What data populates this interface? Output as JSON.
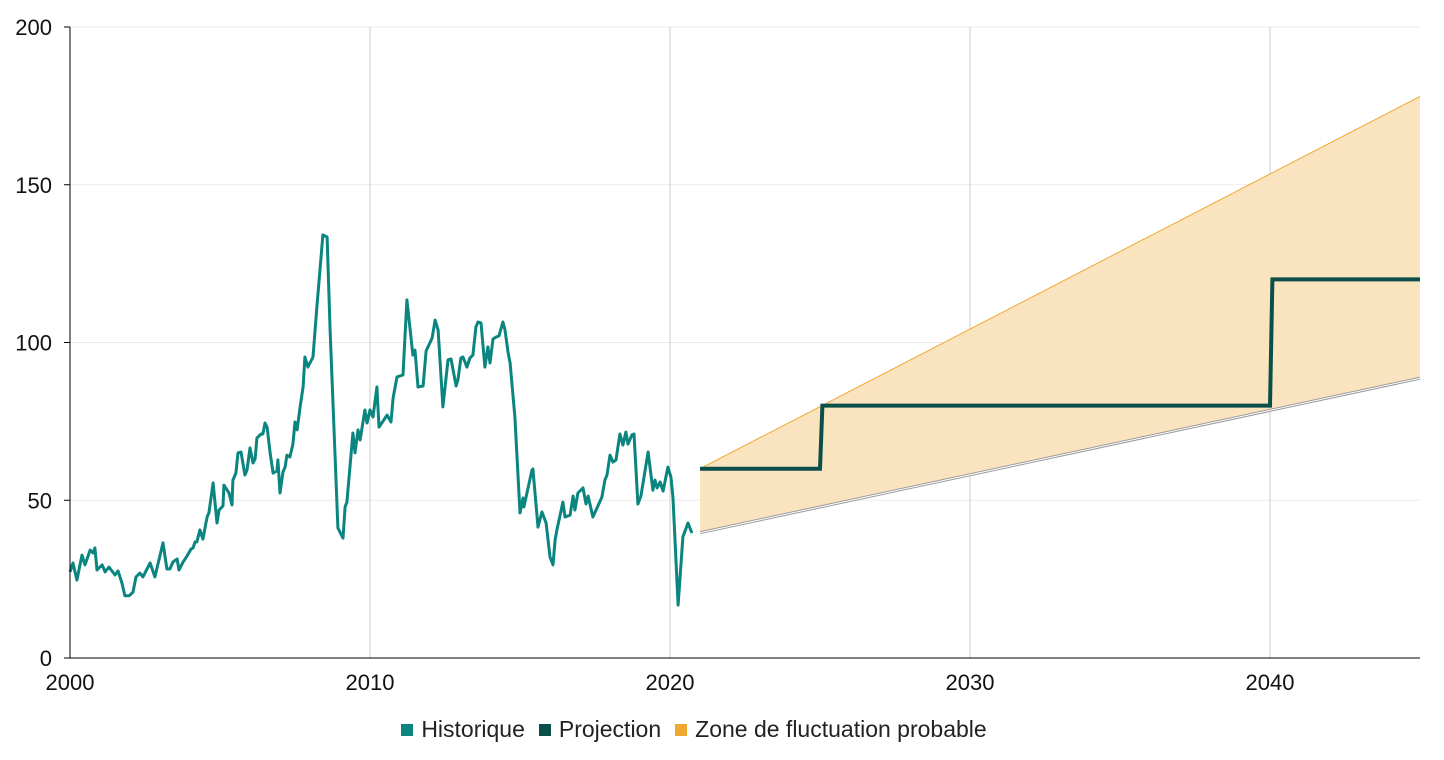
{
  "chart_data": {
    "type": "line",
    "title": "",
    "xlabel": "",
    "ylabel": "",
    "xlim": [
      2000,
      2045
    ],
    "ylim": [
      0,
      200
    ],
    "x_ticks": [
      2000,
      2010,
      2020,
      2030,
      2040
    ],
    "y_ticks": [
      0,
      50,
      100,
      150,
      200
    ],
    "grid": true,
    "legend_placement": "bottom",
    "colors": {
      "historique": "#0a8580",
      "projection": "#0b4f4a",
      "zone": "#f0a830",
      "zone_fill": "#fae4c0",
      "lower_line": "#9a9a9a"
    },
    "legend": [
      "Historique",
      "Projection",
      "Zone de fluctuation probable"
    ],
    "series": [
      {
        "name": "Historique",
        "type": "line",
        "points": [
          [
            2000.0,
            27.3
          ],
          [
            2000.1,
            30.1
          ],
          [
            2000.23,
            24.7
          ],
          [
            2000.4,
            32.6
          ],
          [
            2000.5,
            29.5
          ],
          [
            2000.67,
            34.2
          ],
          [
            2000.77,
            33.3
          ],
          [
            2000.83,
            34.9
          ],
          [
            2000.9,
            27.9
          ],
          [
            2001.07,
            29.5
          ],
          [
            2001.17,
            27.3
          ],
          [
            2001.3,
            28.8
          ],
          [
            2001.5,
            26.3
          ],
          [
            2001.6,
            27.6
          ],
          [
            2001.73,
            23.8
          ],
          [
            2001.83,
            19.7
          ],
          [
            2001.97,
            19.7
          ],
          [
            2002.1,
            20.9
          ],
          [
            2002.2,
            25.7
          ],
          [
            2002.33,
            26.9
          ],
          [
            2002.43,
            25.7
          ],
          [
            2002.67,
            30.1
          ],
          [
            2002.83,
            25.7
          ],
          [
            2003.1,
            36.5
          ],
          [
            2003.23,
            28.2
          ],
          [
            2003.33,
            28.2
          ],
          [
            2003.43,
            30.4
          ],
          [
            2003.57,
            31.4
          ],
          [
            2003.63,
            27.9
          ],
          [
            2003.77,
            30.4
          ],
          [
            2003.9,
            32.3
          ],
          [
            2004.03,
            34.5
          ],
          [
            2004.1,
            34.9
          ],
          [
            2004.17,
            36.8
          ],
          [
            2004.23,
            36.8
          ],
          [
            2004.33,
            40.6
          ],
          [
            2004.43,
            37.7
          ],
          [
            2004.57,
            44.7
          ],
          [
            2004.63,
            46.0
          ],
          [
            2004.77,
            55.5
          ],
          [
            2004.9,
            42.8
          ],
          [
            2004.97,
            46.9
          ],
          [
            2005.1,
            48.2
          ],
          [
            2005.13,
            54.8
          ],
          [
            2005.3,
            52.3
          ],
          [
            2005.4,
            48.5
          ],
          [
            2005.43,
            56.4
          ],
          [
            2005.53,
            58.6
          ],
          [
            2005.6,
            65.0
          ],
          [
            2005.7,
            65.3
          ],
          [
            2005.83,
            58.0
          ],
          [
            2005.9,
            59.6
          ],
          [
            2006.0,
            66.6
          ],
          [
            2006.1,
            61.8
          ],
          [
            2006.17,
            63.1
          ],
          [
            2006.23,
            69.7
          ],
          [
            2006.37,
            71.0
          ],
          [
            2006.43,
            71.0
          ],
          [
            2006.5,
            74.5
          ],
          [
            2006.57,
            73.2
          ],
          [
            2006.67,
            65.0
          ],
          [
            2006.77,
            58.6
          ],
          [
            2006.9,
            59.3
          ],
          [
            2006.93,
            62.8
          ],
          [
            2007.0,
            52.3
          ],
          [
            2007.1,
            59.0
          ],
          [
            2007.17,
            60.5
          ],
          [
            2007.23,
            64.3
          ],
          [
            2007.33,
            63.7
          ],
          [
            2007.43,
            67.8
          ],
          [
            2007.5,
            74.8
          ],
          [
            2007.57,
            72.3
          ],
          [
            2007.67,
            79.6
          ],
          [
            2007.77,
            85.9
          ],
          [
            2007.83,
            95.4
          ],
          [
            2007.93,
            92.2
          ],
          [
            2008.1,
            95.4
          ],
          [
            2008.23,
            111.3
          ],
          [
            2008.43,
            134.1
          ],
          [
            2008.57,
            133.4
          ],
          [
            2008.67,
            104.0
          ],
          [
            2008.93,
            41.2
          ],
          [
            2009.1,
            38.0
          ],
          [
            2009.17,
            47.9
          ],
          [
            2009.23,
            49.4
          ],
          [
            2009.43,
            71.3
          ],
          [
            2009.5,
            65.0
          ],
          [
            2009.6,
            72.3
          ],
          [
            2009.67,
            69.1
          ],
          [
            2009.83,
            78.6
          ],
          [
            2009.9,
            74.5
          ],
          [
            2010.0,
            78.6
          ],
          [
            2010.1,
            76.4
          ],
          [
            2010.23,
            85.9
          ],
          [
            2010.3,
            73.2
          ],
          [
            2010.57,
            77.0
          ],
          [
            2010.7,
            74.8
          ],
          [
            2010.77,
            82.4
          ],
          [
            2010.9,
            89.1
          ],
          [
            2011.1,
            89.7
          ],
          [
            2011.23,
            113.5
          ],
          [
            2011.43,
            96.0
          ],
          [
            2011.5,
            97.6
          ],
          [
            2011.6,
            85.9
          ],
          [
            2011.77,
            86.2
          ],
          [
            2011.87,
            97.3
          ],
          [
            2012.07,
            101.4
          ],
          [
            2012.17,
            107.1
          ],
          [
            2012.27,
            104.0
          ],
          [
            2012.43,
            79.6
          ],
          [
            2012.6,
            94.5
          ],
          [
            2012.7,
            94.8
          ],
          [
            2012.87,
            86.2
          ],
          [
            2012.93,
            88.1
          ],
          [
            2013.03,
            95.1
          ],
          [
            2013.1,
            95.4
          ],
          [
            2013.23,
            92.2
          ],
          [
            2013.33,
            95.1
          ],
          [
            2013.43,
            96.0
          ],
          [
            2013.53,
            104.9
          ],
          [
            2013.6,
            106.5
          ],
          [
            2013.7,
            106.2
          ],
          [
            2013.83,
            92.2
          ],
          [
            2013.93,
            98.6
          ],
          [
            2014.0,
            93.5
          ],
          [
            2014.1,
            101.1
          ],
          [
            2014.2,
            101.7
          ],
          [
            2014.3,
            102.1
          ],
          [
            2014.43,
            106.5
          ],
          [
            2014.5,
            104.0
          ],
          [
            2014.6,
            97.0
          ],
          [
            2014.67,
            93.5
          ],
          [
            2014.83,
            76.4
          ],
          [
            2015.0,
            46.0
          ],
          [
            2015.1,
            50.7
          ],
          [
            2015.13,
            47.9
          ],
          [
            2015.4,
            59.6
          ],
          [
            2015.43,
            59.9
          ],
          [
            2015.6,
            41.5
          ],
          [
            2015.73,
            46.3
          ],
          [
            2015.87,
            42.8
          ],
          [
            2016.0,
            32.0
          ],
          [
            2016.1,
            29.5
          ],
          [
            2016.17,
            37.4
          ],
          [
            2016.23,
            40.6
          ],
          [
            2016.43,
            49.4
          ],
          [
            2016.5,
            44.7
          ],
          [
            2016.67,
            45.3
          ],
          [
            2016.77,
            51.3
          ],
          [
            2016.83,
            46.9
          ],
          [
            2016.93,
            52.3
          ],
          [
            2017.1,
            53.9
          ],
          [
            2017.2,
            48.8
          ],
          [
            2017.27,
            51.3
          ],
          [
            2017.43,
            44.7
          ],
          [
            2017.73,
            51.0
          ],
          [
            2017.83,
            56.4
          ],
          [
            2017.9,
            58.0
          ],
          [
            2018.0,
            64.3
          ],
          [
            2018.1,
            62.1
          ],
          [
            2018.2,
            62.8
          ],
          [
            2018.33,
            71.0
          ],
          [
            2018.43,
            67.5
          ],
          [
            2018.53,
            71.6
          ],
          [
            2018.6,
            67.8
          ],
          [
            2018.73,
            70.7
          ],
          [
            2018.8,
            71.0
          ],
          [
            2018.93,
            48.8
          ],
          [
            2019.03,
            51.3
          ],
          [
            2019.27,
            65.3
          ],
          [
            2019.43,
            53.2
          ],
          [
            2019.5,
            56.4
          ],
          [
            2019.57,
            53.9
          ],
          [
            2019.67,
            55.8
          ],
          [
            2019.77,
            52.9
          ],
          [
            2019.93,
            60.5
          ],
          [
            2020.03,
            57.4
          ],
          [
            2020.1,
            50.7
          ],
          [
            2020.27,
            16.8
          ],
          [
            2020.43,
            38.4
          ],
          [
            2020.6,
            42.8
          ],
          [
            2020.73,
            39.6
          ]
        ]
      },
      {
        "name": "Projection",
        "type": "step",
        "points": [
          [
            2021,
            60
          ],
          [
            2025,
            60
          ],
          [
            2025.08,
            80
          ],
          [
            2040,
            80
          ],
          [
            2040.08,
            120
          ],
          [
            2045,
            120
          ]
        ]
      },
      {
        "name": "Zone de fluctuation probable",
        "type": "band",
        "lower": [
          [
            2021,
            40
          ],
          [
            2045,
            89
          ]
        ],
        "upper": [
          [
            2021,
            60
          ],
          [
            2045,
            178
          ]
        ]
      }
    ]
  }
}
